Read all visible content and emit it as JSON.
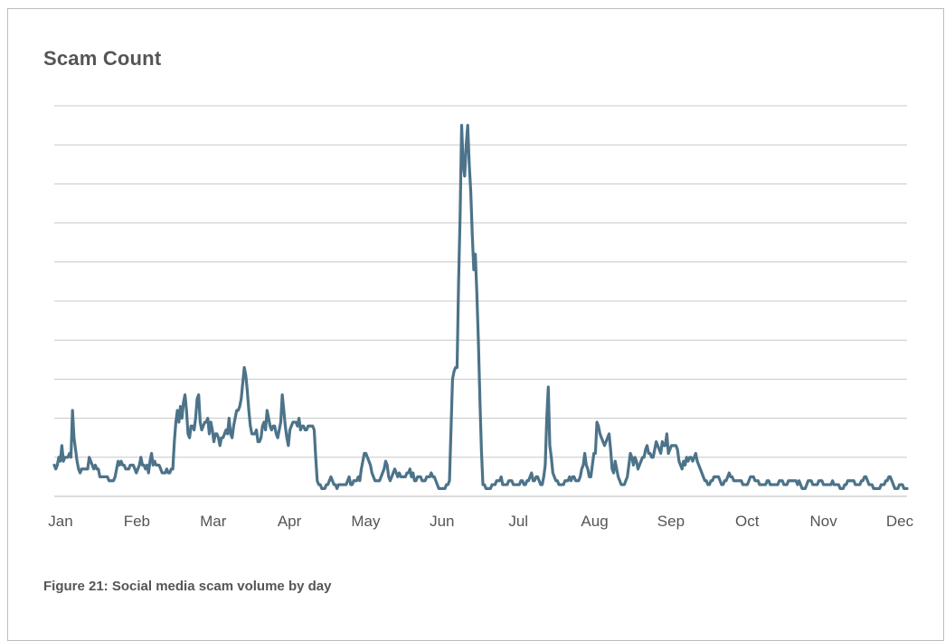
{
  "title": "Scam Count",
  "caption": "Figure 21: Social media scam volume by day",
  "colors": {
    "line": "#4c7389",
    "grid": "#c8c8c8",
    "text": "#555555"
  },
  "chart_data": {
    "type": "line",
    "title": "Scam Count",
    "xlabel": "",
    "ylabel": "",
    "x_tick_labels": [
      "Jan",
      "Feb",
      "Mar",
      "Apr",
      "May",
      "Jun",
      "Jul",
      "Aug",
      "Sep",
      "Oct",
      "Nov",
      "Dec"
    ],
    "y_tick_labels_shown": false,
    "ylim": [
      0,
      100
    ],
    "grid": "horizontal",
    "legend": "none",
    "units_note": "values in relative scale (0-100); no y-axis tick labels printed",
    "series": [
      {
        "values": [
          8,
          7,
          8,
          10,
          9,
          13,
          9,
          10,
          10,
          10,
          11,
          10,
          22,
          15,
          12,
          9,
          7,
          6,
          7,
          7,
          7,
          7,
          7,
          10,
          9,
          8,
          7,
          8,
          7,
          7,
          5,
          5,
          5,
          5,
          5,
          5,
          4,
          4,
          4,
          4,
          5,
          7,
          9,
          8,
          9,
          8,
          8,
          7,
          7,
          7,
          8,
          8,
          8,
          7,
          6,
          7,
          8,
          10,
          8,
          8,
          7,
          8,
          6,
          9,
          11,
          8,
          9,
          8,
          8,
          8,
          7,
          6,
          6,
          6,
          7,
          6,
          6,
          7,
          7,
          14,
          19,
          22,
          19,
          23,
          20,
          24,
          26,
          22,
          16,
          15,
          18,
          18,
          17,
          20,
          25,
          26,
          19,
          17,
          18,
          19,
          19,
          20,
          16,
          19,
          17,
          14,
          16,
          16,
          15,
          13,
          15,
          15,
          16,
          17,
          16,
          20,
          16,
          15,
          18,
          20,
          22,
          22,
          23,
          25,
          29,
          33,
          31,
          27,
          22,
          18,
          16,
          16,
          16,
          17,
          14,
          14,
          15,
          18,
          19,
          17,
          22,
          20,
          18,
          17,
          18,
          18,
          16,
          15,
          17,
          19,
          26,
          22,
          18,
          15,
          13,
          17,
          18,
          19,
          19,
          19,
          18,
          20,
          17,
          18,
          18,
          17,
          17,
          18,
          18,
          18,
          18,
          17,
          10,
          4,
          3,
          3,
          2,
          2,
          2,
          3,
          3,
          4,
          5,
          4,
          3,
          3,
          2,
          3,
          3,
          3,
          3,
          3,
          3,
          4,
          5,
          3,
          3,
          4,
          4,
          4,
          5,
          4,
          7,
          9,
          11,
          11,
          10,
          9,
          8,
          6,
          5,
          4,
          4,
          4,
          4,
          5,
          6,
          7,
          9,
          8,
          5,
          4,
          5,
          6,
          7,
          6,
          5,
          6,
          5,
          5,
          5,
          5,
          6,
          6,
          7,
          5,
          6,
          4,
          4,
          5,
          5,
          5,
          4,
          4,
          4,
          5,
          5,
          5,
          6,
          5,
          5,
          4,
          3,
          2,
          2,
          2,
          2,
          2,
          3,
          3,
          4,
          17,
          30,
          32,
          33,
          33,
          55,
          72,
          95,
          85,
          82,
          90,
          95,
          85,
          78,
          67,
          58,
          62,
          52,
          40,
          25,
          12,
          3,
          3,
          2,
          2,
          2,
          2,
          3,
          3,
          3,
          4,
          4,
          4,
          5,
          3,
          3,
          3,
          3,
          4,
          4,
          4,
          3,
          3,
          3,
          3,
          3,
          4,
          4,
          3,
          3,
          4,
          4,
          5,
          6,
          4,
          4,
          5,
          5,
          4,
          3,
          3,
          5,
          8,
          20,
          28,
          13,
          10,
          6,
          5,
          4,
          4,
          3,
          3,
          3,
          3,
          4,
          4,
          4,
          5,
          4,
          5,
          5,
          4,
          4,
          4,
          5,
          7,
          8,
          11,
          8,
          7,
          5,
          5,
          8,
          11,
          11,
          19,
          18,
          16,
          15,
          14,
          13,
          14,
          15,
          16,
          12,
          7,
          6,
          9,
          7,
          5,
          4,
          3,
          3,
          3,
          4,
          5,
          8,
          11,
          10,
          8,
          10,
          9,
          7,
          8,
          9,
          10,
          10,
          12,
          13,
          11,
          11,
          10,
          10,
          12,
          14,
          13,
          12,
          11,
          14,
          13,
          13,
          16,
          11,
          12,
          13,
          13,
          13,
          13,
          12,
          9,
          8,
          7,
          9,
          8,
          10,
          9,
          10,
          10,
          9,
          10,
          11,
          9,
          8,
          7,
          6,
          5,
          4,
          4,
          3,
          3,
          4,
          4,
          5,
          5,
          5,
          5,
          4,
          3,
          3,
          4,
          4,
          5,
          6,
          5,
          5,
          4,
          4,
          4,
          4,
          4,
          4,
          3,
          3,
          3,
          3,
          4,
          5,
          5,
          5,
          4,
          4,
          4,
          3,
          3,
          3,
          3,
          3,
          4,
          4,
          3,
          3,
          3,
          3,
          3,
          3,
          4,
          4,
          4,
          3,
          3,
          3,
          4,
          4,
          4,
          4,
          4,
          4,
          3,
          4,
          3,
          2,
          2,
          2,
          3,
          4,
          4,
          4,
          3,
          3,
          3,
          3,
          4,
          4,
          4,
          3,
          3,
          3,
          3,
          3,
          3,
          4,
          3,
          3,
          3,
          3,
          2,
          2,
          2,
          3,
          3,
          4,
          4,
          4,
          4,
          4,
          3,
          3,
          3,
          3,
          4,
          4,
          5,
          5,
          4,
          3,
          3,
          3,
          2,
          2,
          2,
          2,
          2,
          3,
          3,
          3,
          4,
          4,
          5,
          5,
          4,
          3,
          2,
          2,
          2,
          3,
          3,
          3,
          2,
          2,
          2
        ]
      }
    ]
  }
}
